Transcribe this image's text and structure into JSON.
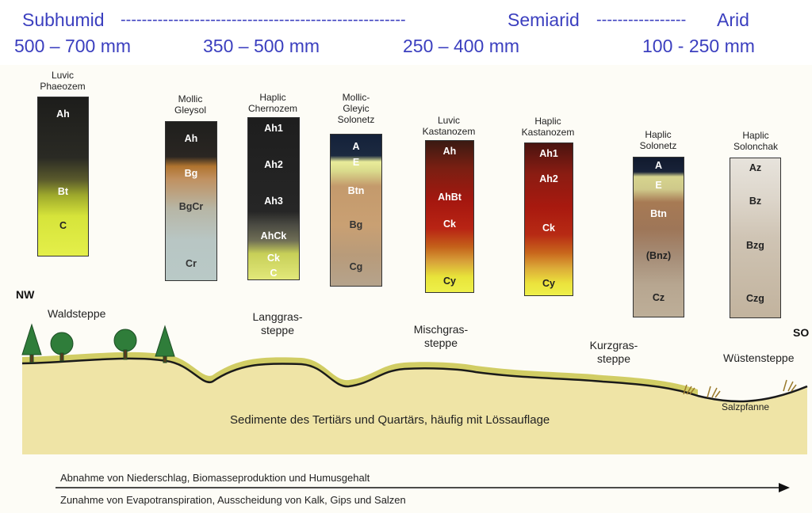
{
  "header": {
    "zones": [
      "Subhumid",
      "Semiarid",
      "Arid"
    ],
    "separators": [
      "------------------------------------------------------",
      "-----------------"
    ],
    "precipitation": [
      "500 – 700 mm",
      "350 – 500 mm",
      "250 – 400 mm",
      "100 - 250 mm"
    ]
  },
  "profiles": [
    {
      "name": [
        "Luvic",
        "Phaeozem"
      ],
      "horizons": [
        "Ah",
        "Bt",
        "C"
      ]
    },
    {
      "name": [
        "Mollic",
        "Gleysol"
      ],
      "horizons": [
        "Ah",
        "Bg",
        "BgCr",
        "Cr"
      ]
    },
    {
      "name": [
        "Haplic",
        "Chernozem"
      ],
      "horizons": [
        "Ah1",
        "Ah2",
        "Ah3",
        "AhCk",
        "Ck",
        "C"
      ]
    },
    {
      "name": [
        "Mollic-",
        "Gleyic",
        "Solonetz"
      ],
      "horizons": [
        "A",
        "E",
        "Btn",
        "Bg",
        "Cg"
      ]
    },
    {
      "name": [
        "Luvic",
        "Kastanozem"
      ],
      "horizons": [
        "Ah",
        "AhBt",
        "Ck",
        "Cy"
      ]
    },
    {
      "name": [
        "Haplic",
        "Kastanozem"
      ],
      "horizons": [
        "Ah1",
        "Ah2",
        "Ck",
        "Cy"
      ]
    },
    {
      "name": [
        "Haplic",
        "Solonetz"
      ],
      "horizons": [
        "A",
        "E",
        "Btn",
        "(Bnz)",
        "Cz"
      ]
    },
    {
      "name": [
        "Haplic",
        "Solonchak"
      ],
      "horizons": [
        "Az",
        "Bz",
        "Bzg",
        "Czg"
      ]
    }
  ],
  "landscape": {
    "nw": "NW",
    "so": "SO",
    "vegetation": [
      [
        "Waldsteppe"
      ],
      [
        "Langgras-",
        "steppe"
      ],
      [
        "Mischgras-",
        "steppe"
      ],
      [
        "Kurzgras-",
        "steppe"
      ],
      [
        "Wüstensteppe"
      ]
    ],
    "salt_pan": "Salzpfanne",
    "sediment": "Sedimente des Tertiärs und Quartärs, häufig mit Lössauflage"
  },
  "gradient": {
    "decrease": "Abnahme von Niederschlag, Biomasseproduktion und Humusgehalt",
    "increase": "Zunahme von Evapotranspiration, Ausscheidung von Kalk, Gips und Salzen"
  },
  "colors": {
    "title_blue": "#3b3fbf",
    "sediment": "#efe4a6",
    "grass": "#c9c44a",
    "tree": "#2f7d3a"
  }
}
